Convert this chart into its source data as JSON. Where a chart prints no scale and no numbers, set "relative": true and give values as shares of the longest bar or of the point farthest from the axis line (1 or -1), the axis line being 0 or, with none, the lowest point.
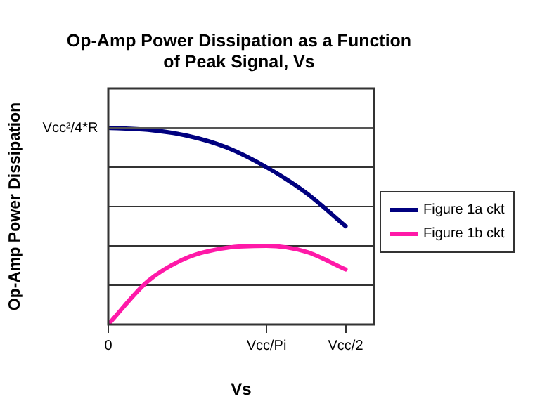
{
  "chart_data": {
    "type": "line",
    "title": "Op-Amp Power Dissipation as a Function of Peak Signal, Vs",
    "xlabel": "Vs",
    "ylabel": "Op-Amp Power Dissipation",
    "relative": true,
    "categories": [
      "0",
      null,
      null,
      null,
      "Vcc/Pi",
      null,
      "Vcc/2"
    ],
    "grid": "y",
    "legend": "right",
    "marker": "none",
    "line_style": "solid",
    "ref_lines": [
      {
        "axis": "y",
        "value": 1,
        "label": "Vcc²/4*R"
      }
    ],
    "series": [
      {
        "name": "Figure 1a ckt",
        "color": "#00007f",
        "values": [
          1.0,
          0.99,
          0.96,
          0.9,
          0.8,
          0.67,
          0.5
        ]
      },
      {
        "name": "Figure 1b ckt",
        "color": "#ff19a8",
        "values": [
          0,
          0.22,
          0.34,
          0.39,
          0.4,
          0.37,
          0.28
        ]
      }
    ]
  }
}
